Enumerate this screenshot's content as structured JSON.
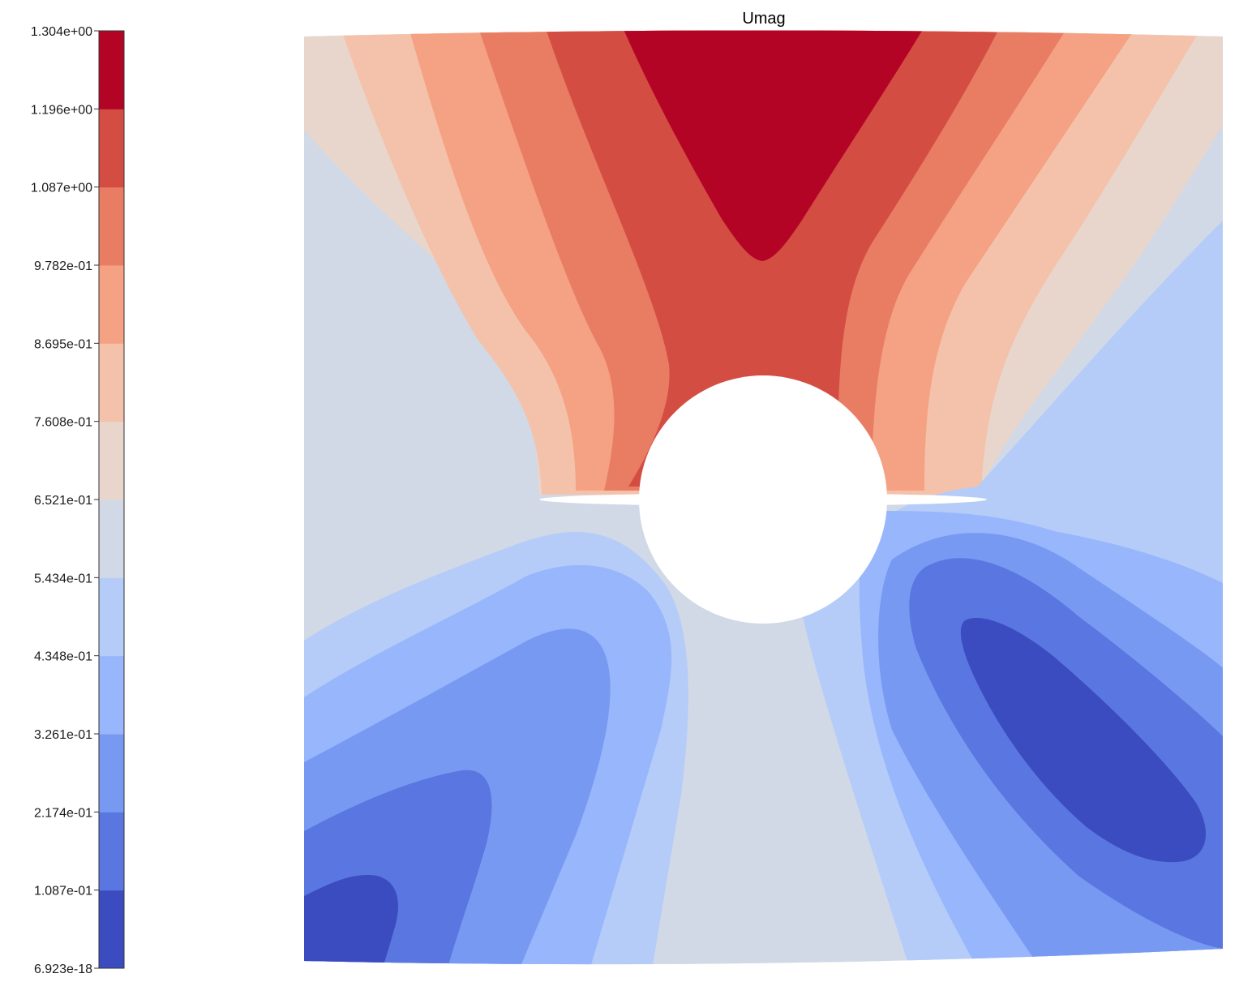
{
  "chart_data": {
    "type": "heatmap",
    "title": "Umag",
    "xlabel": "",
    "ylabel": "",
    "grid": false,
    "legend": "colorbar-left",
    "colorbar": {
      "ticks": [
        "1.304e+00",
        "1.196e+00",
        "1.087e+00",
        "9.782e-01",
        "8.695e-01",
        "7.608e-01",
        "6.521e-01",
        "5.434e-01",
        "4.348e-01",
        "3.261e-01",
        "2.174e-01",
        "1.087e-01",
        "6.923e-18"
      ],
      "levels": [
        0.0,
        0.1087,
        0.2174,
        0.3261,
        0.4348,
        0.5434,
        0.6521,
        0.7608,
        0.8695,
        0.9782,
        1.087,
        1.196,
        1.304
      ],
      "colors": [
        "#3b4cc0",
        "#5a76e0",
        "#7799f2",
        "#98b6fb",
        "#b5ccf9",
        "#d1d9e6",
        "#e8d6cd",
        "#f4c2aa",
        "#f4a283",
        "#e97d63",
        "#d44d43",
        "#b40426"
      ]
    }
  }
}
